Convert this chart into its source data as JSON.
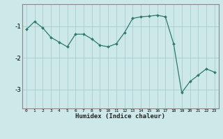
{
  "x": [
    0,
    1,
    2,
    3,
    4,
    5,
    6,
    7,
    8,
    9,
    10,
    11,
    12,
    13,
    14,
    15,
    16,
    17,
    18,
    19,
    20,
    21,
    22,
    23
  ],
  "y": [
    -1.1,
    -0.85,
    -1.05,
    -1.35,
    -1.5,
    -1.65,
    -1.25,
    -1.25,
    -1.4,
    -1.6,
    -1.65,
    -1.55,
    -1.2,
    -0.75,
    -0.7,
    -0.68,
    -0.65,
    -0.7,
    -1.55,
    -3.1,
    -2.75,
    -2.55,
    -2.35,
    -2.45
  ],
  "xlabel": "Humidex (Indice chaleur)",
  "bg_color": "#cce8e8",
  "grid_color": "#aacccc",
  "line_color": "#2d7a6a",
  "marker_color": "#2d7a6a",
  "yticks": [
    -3,
    -2,
    -1
  ],
  "ylim": [
    -3.6,
    -0.3
  ],
  "xlim": [
    -0.5,
    23.5
  ],
  "spine_color": "#888888",
  "xlabel_fontsize": 6.5,
  "xtick_fontsize": 4.5,
  "ytick_fontsize": 6.5
}
